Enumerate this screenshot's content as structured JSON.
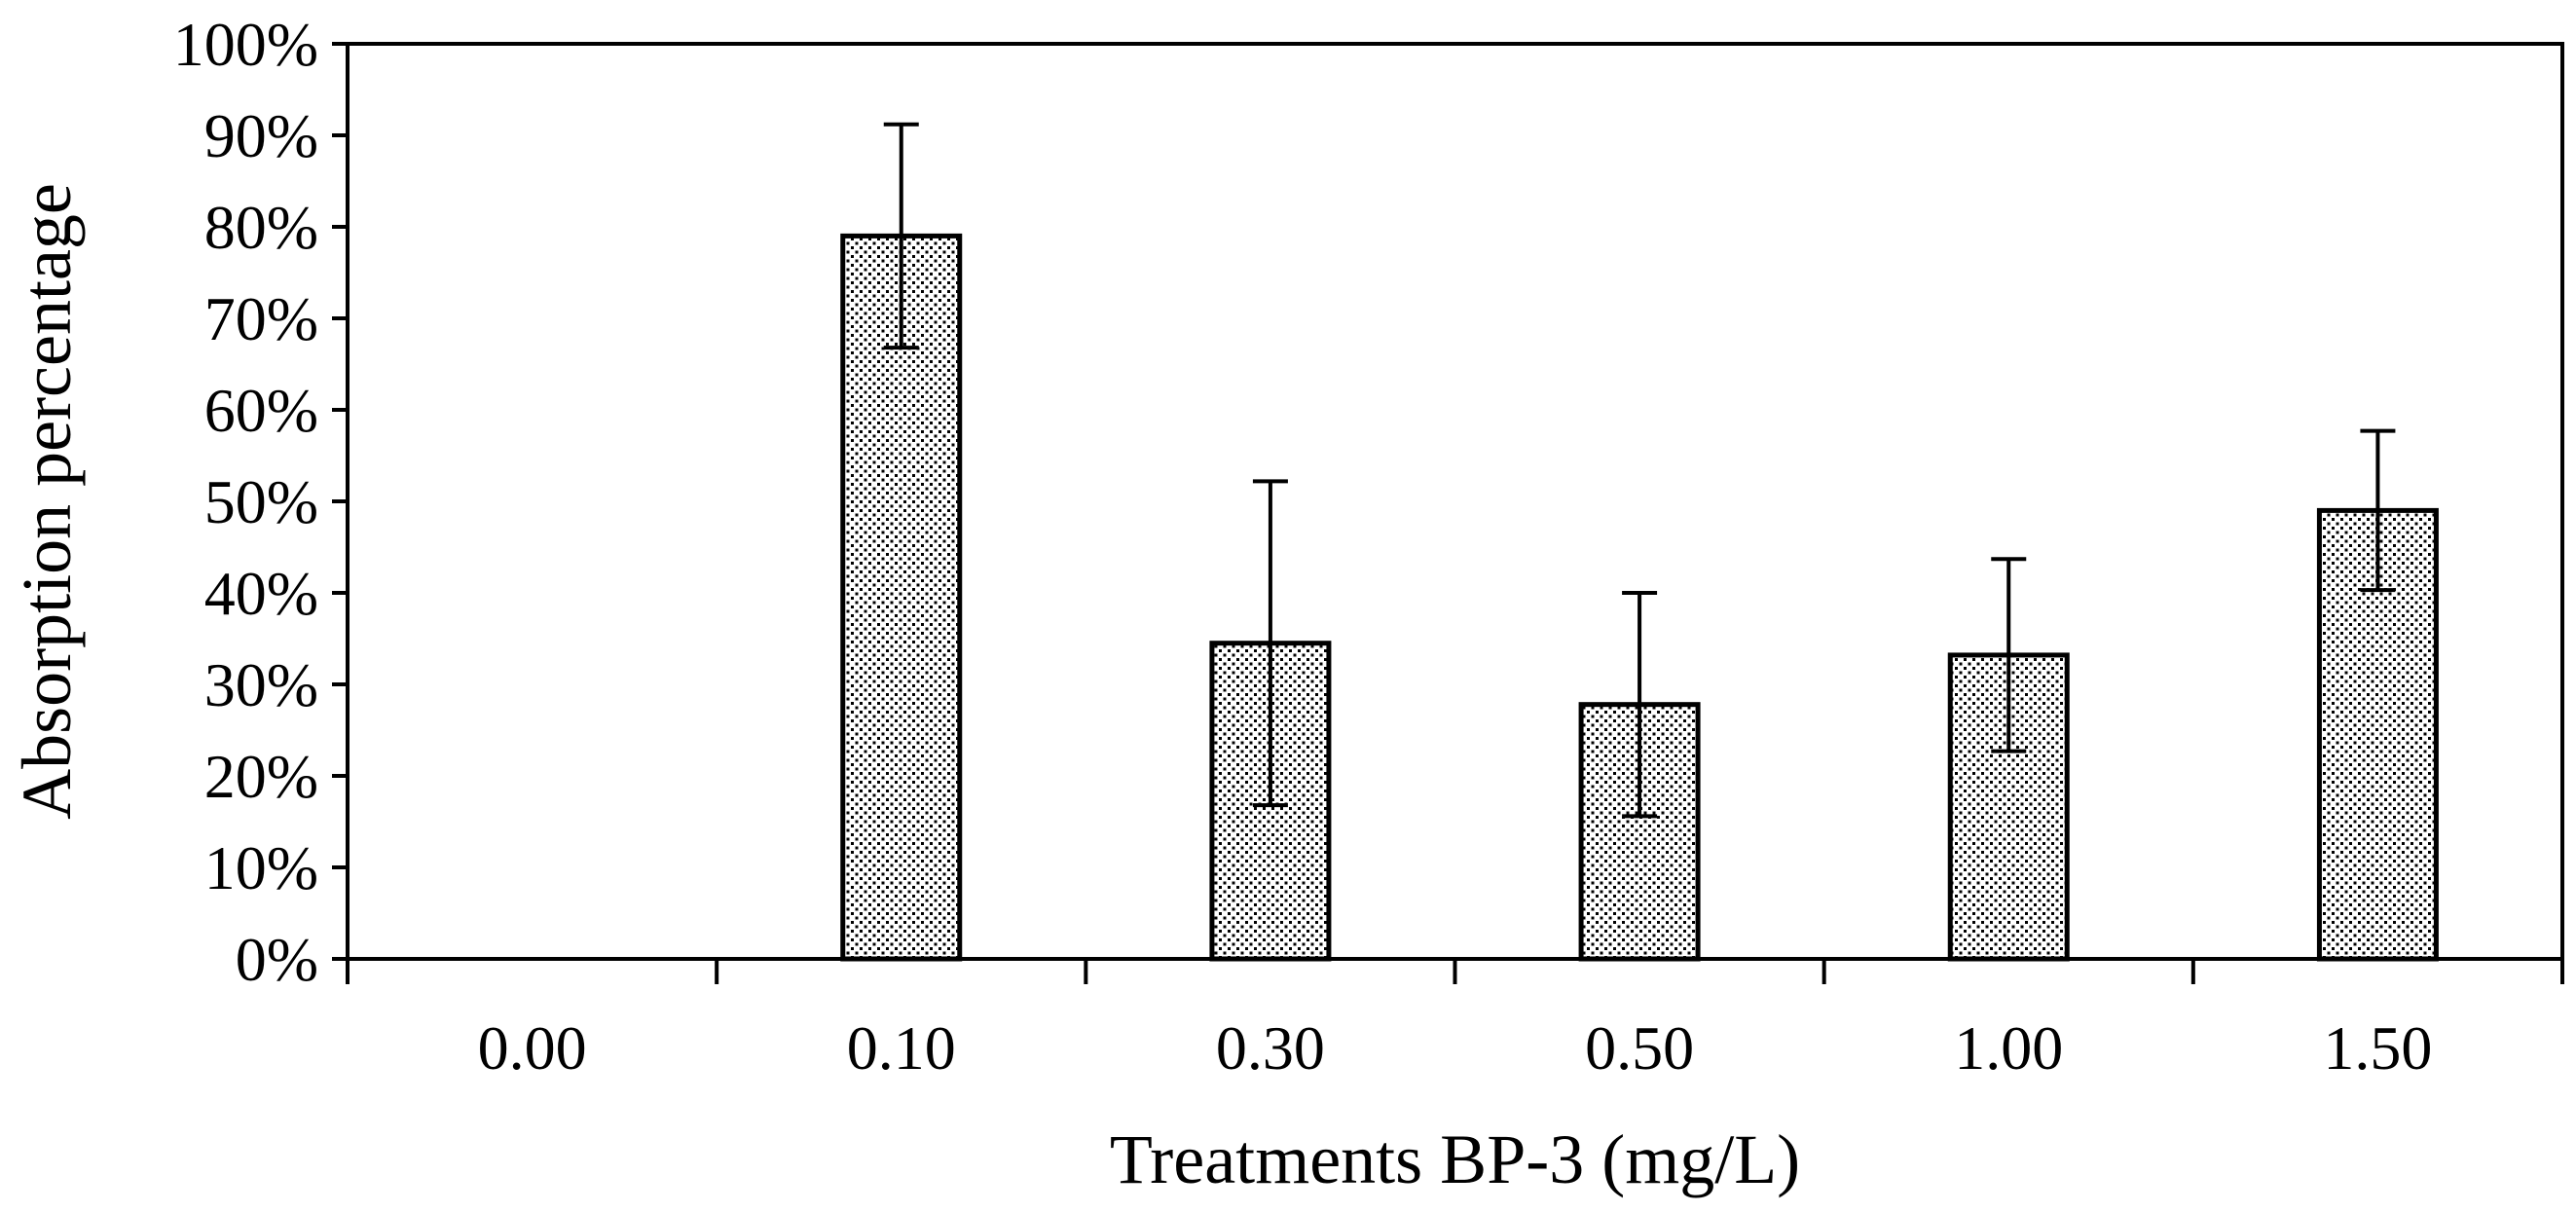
{
  "chart_data": {
    "type": "bar",
    "title": "",
    "xlabel": "Treatments BP-3 (mg/L)",
    "ylabel": "Absorption percentage",
    "categories": [
      "0.00",
      "0.10",
      "0.30",
      "0.50",
      "1.00",
      "1.50"
    ],
    "values": [
      0,
      79,
      34.5,
      27.8,
      33.2,
      49
    ],
    "errors": [
      0,
      12.2,
      17.7,
      12.2,
      10.5,
      8.7
    ],
    "ylim": [
      0,
      100
    ],
    "yticks": [
      0,
      10,
      20,
      30,
      40,
      50,
      60,
      70,
      80,
      90,
      100
    ],
    "ytick_labels": [
      "0%",
      "10%",
      "20%",
      "30%",
      "40%",
      "50%",
      "60%",
      "70%",
      "80%",
      "90%",
      "100%"
    ],
    "bar_fill": "dotted",
    "grid": false,
    "frame": true
  }
}
